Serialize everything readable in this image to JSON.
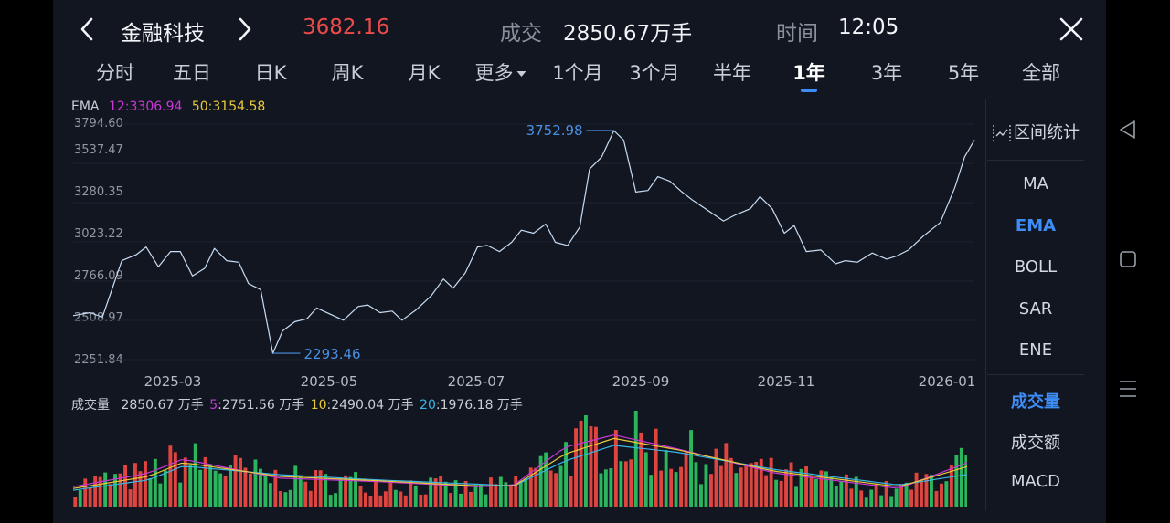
{
  "header": {
    "back_icon": "chevron-left-icon",
    "title": "金融科技",
    "forward_icon": "chevron-right-icon",
    "price": "3682.16",
    "volume_label": "成交",
    "volume_value": "2850.67万手",
    "time_label": "时间",
    "time_value": "12:05",
    "close_icon": "close-icon"
  },
  "tabs": [
    {
      "label": "分时"
    },
    {
      "label": "五日"
    },
    {
      "label": "日K"
    },
    {
      "label": "周K"
    },
    {
      "label": "月K"
    },
    {
      "label": "更多"
    },
    {
      "label": "1个月"
    },
    {
      "label": "3个月"
    },
    {
      "label": "半年"
    },
    {
      "label": "1年",
      "active": true
    },
    {
      "label": "3年"
    },
    {
      "label": "5年"
    },
    {
      "label": "全部"
    }
  ],
  "ema_legend": {
    "name": "EMA",
    "ema12": "12:3306.94",
    "ema50": "50:3154.58"
  },
  "volume_legend": {
    "name": "成交量",
    "current": "2850.67 万手",
    "ma5_key": "5",
    "ma5_value": ":2751.56 万手",
    "ma10_key": "10",
    "ma10_value": ":2490.04 万手",
    "ma20_key": "20",
    "ma20_value": ":1976.18 万手"
  },
  "sidebar": {
    "range_stats": "区间统计",
    "range_icon": "range-stats-icon",
    "items": [
      {
        "label": "MA"
      },
      {
        "label": "EMA",
        "active": true
      },
      {
        "label": "BOLL"
      },
      {
        "label": "SAR"
      },
      {
        "label": "ENE"
      },
      {
        "label": "成交量",
        "active": true
      },
      {
        "label": "成交额"
      },
      {
        "label": "MACD"
      }
    ]
  },
  "system_nav": {
    "back": "triangle-back-icon",
    "home": "square-home-icon",
    "menu": "menu-lines-icon"
  },
  "colors": {
    "line": "#c8ddf5",
    "annotation": "#4a90e2",
    "ema12": "#c838d8",
    "ema50": "#e9c93a",
    "ma5": "#c838d8",
    "ma10": "#e9c93a",
    "ma20": "#38b6e8",
    "up": "#e0443e",
    "down": "#2bb55c",
    "accent": "#3e8df7"
  },
  "chart_data": {
    "type": "line",
    "y_ticks": [
      "3794.60",
      "3537.47",
      "3280.35",
      "3023.22",
      "2766.09",
      "2508.97",
      "2251.84"
    ],
    "ylim": [
      2251.84,
      3794.6
    ],
    "x_ticks": [
      "2025-03",
      "2025-05",
      "2025-07",
      "2025-09",
      "2025-11",
      "2026-01"
    ],
    "x_range": [
      "2025-01-15",
      "2026-01-20"
    ],
    "max_annotation": {
      "value": "3752.98",
      "date": "2025-08-25"
    },
    "min_annotation": {
      "value": "2293.46",
      "date": "2025-04-07"
    },
    "series": [
      {
        "x": [
          "2025-01-15",
          "2025-01-22",
          "2025-01-27",
          "2025-02-04",
          "2025-02-10",
          "2025-02-14",
          "2025-02-19",
          "2025-02-24",
          "2025-02-28",
          "2025-03-05",
          "2025-03-10",
          "2025-03-14",
          "2025-03-19",
          "2025-03-24",
          "2025-03-28",
          "2025-04-02",
          "2025-04-07",
          "2025-04-11",
          "2025-04-16",
          "2025-04-21",
          "2025-04-25",
          "2025-05-06",
          "2025-05-12",
          "2025-05-16",
          "2025-05-21",
          "2025-05-26",
          "2025-05-30",
          "2025-06-05",
          "2025-06-11",
          "2025-06-16",
          "2025-06-20",
          "2025-06-25",
          "2025-06-30",
          "2025-07-04",
          "2025-07-09",
          "2025-07-14",
          "2025-07-18",
          "2025-07-23",
          "2025-07-28",
          "2025-08-01",
          "2025-08-06",
          "2025-08-11",
          "2025-08-15",
          "2025-08-20",
          "2025-08-25",
          "2025-08-29",
          "2025-09-03",
          "2025-09-08",
          "2025-09-12",
          "2025-09-17",
          "2025-09-22",
          "2025-09-26",
          "2025-10-09",
          "2025-10-14",
          "2025-10-20",
          "2025-10-24",
          "2025-10-29",
          "2025-11-03",
          "2025-11-07",
          "2025-11-12",
          "2025-11-18",
          "2025-11-24",
          "2025-11-28",
          "2025-12-03",
          "2025-12-09",
          "2025-12-15",
          "2025-12-19",
          "2025-12-24",
          "2025-12-30",
          "2026-01-06",
          "2026-01-12",
          "2026-01-16",
          "2026-01-20"
        ],
        "values": [
          2540,
          2560,
          2530,
          2900,
          2940,
          2990,
          2860,
          2960,
          2960,
          2800,
          2850,
          2980,
          2900,
          2890,
          2750,
          2710,
          2293,
          2440,
          2500,
          2520,
          2590,
          2510,
          2600,
          2610,
          2560,
          2570,
          2510,
          2580,
          2670,
          2780,
          2720,
          2820,
          2990,
          3000,
          2960,
          3020,
          3100,
          3080,
          3140,
          3020,
          3000,
          3120,
          3500,
          3580,
          3752,
          3690,
          3350,
          3360,
          3450,
          3420,
          3350,
          3300,
          3160,
          3200,
          3240,
          3320,
          3240,
          3080,
          3130,
          2960,
          2970,
          2880,
          2900,
          2890,
          2950,
          2910,
          2930,
          2970,
          3060,
          3150,
          3380,
          3580,
          3690
        ]
      }
    ]
  },
  "volume_chart": {
    "type": "bar",
    "unit": "万手",
    "bars": 180,
    "profile_dates": [
      "2025-01-15",
      "2025-02-15",
      "2025-03-01",
      "2025-04-10",
      "2025-05-20",
      "2025-06-30",
      "2025-07-15",
      "2025-08-05",
      "2025-08-25",
      "2025-09-20",
      "2025-10-30",
      "2025-12-20",
      "2026-01-20"
    ],
    "profile_values": [
      1300,
      2000,
      2900,
      1700,
      1500,
      1100,
      1400,
      3400,
      4300,
      3300,
      2000,
      1000,
      2850
    ],
    "ma_dates": [
      "2025-01-15",
      "2025-02-15",
      "2025-03-01",
      "2025-04-10",
      "2025-05-20",
      "2025-06-30",
      "2025-07-15",
      "2025-08-05",
      "2025-08-25",
      "2025-09-20",
      "2025-10-30",
      "2025-12-20",
      "2026-01-20"
    ],
    "ma5": [
      1200,
      2000,
      2800,
      1700,
      1500,
      1200,
      1300,
      3500,
      4200,
      3400,
      2000,
      1100,
      2751.56
    ],
    "ma10": [
      1100,
      1800,
      2600,
      1800,
      1550,
      1250,
      1250,
      3100,
      4000,
      3350,
      2100,
      1200,
      2490.04
    ],
    "ma20": [
      1000,
      1600,
      2400,
      1900,
      1600,
      1350,
      1250,
      2700,
      3600,
      3200,
      2200,
      1300,
      1976.18
    ],
    "ymax": 5500
  }
}
